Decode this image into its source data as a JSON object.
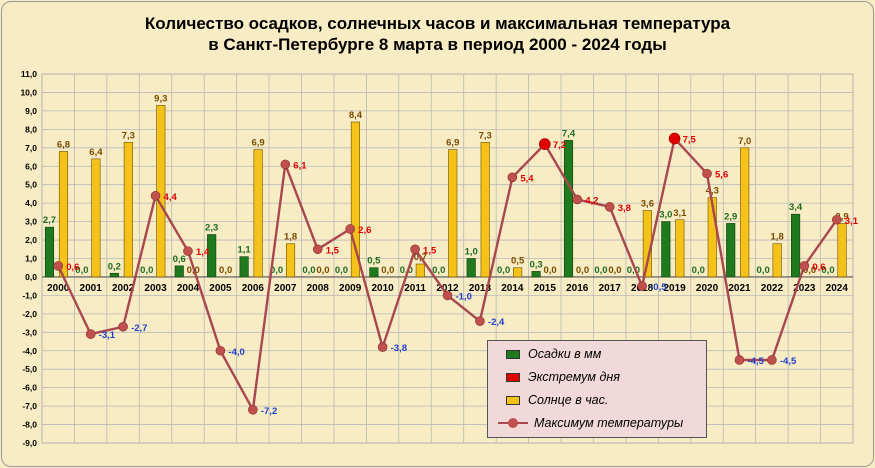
{
  "chart_data": {
    "type": "bar",
    "title": "Количество осадков, солнечных часов и максимальная температура",
    "subtitle": "в Санкт-Петербурге 8 марта в период 2000 - 2024 годы",
    "categories": [
      "2000",
      "2001",
      "2002",
      "2003",
      "2004",
      "2005",
      "2006",
      "2007",
      "2008",
      "2009",
      "2010",
      "2011",
      "2012",
      "2013",
      "2014",
      "2015",
      "2016",
      "2017",
      "2018",
      "2019",
      "2020",
      "2021",
      "2022",
      "2023",
      "2024"
    ],
    "ylim": [
      -9,
      11
    ],
    "yticks": [
      "11,0",
      "10,0",
      "9,0",
      "8,0",
      "7,0",
      "6,0",
      "5,0",
      "4,0",
      "3,0",
      "2,0",
      "1,0",
      "0,0",
      "-1,0",
      "-2,0",
      "-3,0",
      "-4,0",
      "-5,0",
      "-6,0",
      "-7,0",
      "-8,0",
      "-9,0"
    ],
    "grid": true,
    "legend_position": "bottom-right",
    "series": [
      {
        "name": "Осадки в мм",
        "type": "bar",
        "color": "#1f7a1f",
        "values": [
          2.7,
          0.0,
          0.2,
          0.0,
          0.6,
          2.3,
          1.1,
          0.0,
          0.0,
          0.0,
          0.5,
          0.0,
          0.0,
          1.0,
          0.0,
          0.3,
          7.4,
          0.0,
          0.0,
          3.0,
          0.0,
          2.9,
          0.0,
          3.4,
          0.0
        ],
        "labels": [
          "2,7",
          "0,0",
          "0,2",
          "0,0",
          "0,6",
          "2,3",
          "1,1",
          "0,0",
          "0,0",
          "0,0",
          "0,5",
          "0,0",
          "0,0",
          "1,0",
          "0,0",
          "0,3",
          "7,4",
          "0,0",
          "0,0",
          "3,0",
          "0,0",
          "2,9",
          "0,0",
          "3,4",
          "0,0"
        ]
      },
      {
        "name": "Экстремум дня",
        "type": "marker",
        "color": "#e00000",
        "values": [
          null,
          null,
          null,
          null,
          null,
          null,
          null,
          null,
          null,
          null,
          null,
          null,
          null,
          null,
          null,
          7.2,
          null,
          null,
          null,
          7.5,
          null,
          null,
          null,
          null,
          null
        ],
        "labels": []
      },
      {
        "name": "Солнце в час.",
        "type": "bar",
        "color": "#f5c21a",
        "values": [
          6.8,
          6.4,
          7.3,
          9.3,
          0.0,
          0.0,
          6.9,
          1.8,
          0.0,
          8.4,
          0.0,
          0.7,
          6.9,
          7.3,
          0.5,
          0.0,
          0.0,
          0.0,
          3.6,
          3.1,
          4.3,
          7.0,
          1.8,
          0.0,
          2.9
        ],
        "labels": [
          "6,8",
          "6,4",
          "7,3",
          "9,3",
          "0,0",
          "0,0",
          "6,9",
          "1,8",
          "0,0",
          "8,4",
          "0,0",
          "0,7",
          "6,9",
          "7,3",
          "0,5",
          "0,0",
          "0,0",
          "0,0",
          "3,6",
          "3,1",
          "4,3",
          "7,0",
          "1,8",
          "0,0",
          "2,9"
        ]
      },
      {
        "name": "Максимум температуры",
        "type": "line",
        "color": "#a8474f",
        "values": [
          0.6,
          -3.1,
          -2.7,
          4.4,
          1.4,
          -4.0,
          -7.2,
          6.1,
          1.5,
          2.6,
          -3.8,
          1.5,
          -1.0,
          -2.4,
          5.4,
          7.2,
          4.2,
          3.8,
          -0.5,
          7.5,
          5.6,
          -4.5,
          -4.5,
          0.6,
          3.1
        ],
        "labels": [
          "0,6",
          "-3,1",
          "-2,7",
          "4,4",
          "1,4",
          "-4,0",
          "-7,2",
          "6,1",
          "1,5",
          "2,6",
          "-3,8",
          "1,5",
          "-1,0",
          "-2,4",
          "5,4",
          "7,2",
          "4,2",
          "3,8",
          "-0,5",
          "7,5",
          "5,6",
          "-4,5",
          "-4,5",
          "0,6",
          "3,1"
        ]
      }
    ],
    "colors": {
      "background": "#f7ecc4",
      "grid": "#b9b9b9",
      "positive_temp_label": "#e00000",
      "negative_temp_label": "#1f3fcf",
      "precip_label": "#1f6b1f",
      "sun_label": "#7a4a00",
      "legend_background": "#f2d9d9"
    }
  }
}
